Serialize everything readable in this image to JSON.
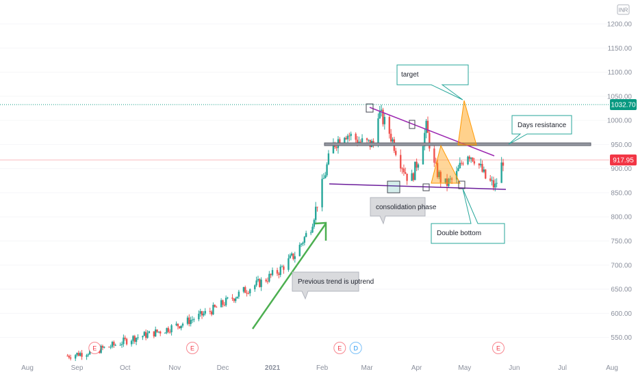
{
  "chart_data": {
    "type": "candlestick",
    "currency": "INR",
    "y_axis": {
      "min": 510,
      "max": 1230,
      "ticks": [
        550,
        600,
        650,
        700,
        750,
        800,
        850,
        900,
        950,
        1000,
        1050,
        1100,
        1150,
        1200
      ],
      "tick_labels": [
        "550.00",
        "600.00",
        "650.00",
        "700.00",
        "750.00",
        "800.00",
        "850.00",
        "900.00",
        "950.00",
        "1000.00",
        "1050.00",
        "1100.00",
        "1150.00",
        "1200.00"
      ]
    },
    "x_axis": {
      "labels": [
        "Aug",
        "Sep",
        "Oct",
        "Nov",
        "Dec",
        "2021",
        "Feb",
        "Mar",
        "Apr",
        "May",
        "Jun",
        "Jul",
        "Aug"
      ],
      "bold_labels": [
        "2021"
      ]
    },
    "price_levels": [
      {
        "value": 1032.7,
        "label": "1032.70",
        "color": "#089981",
        "style": "dotted"
      },
      {
        "value": 917.95,
        "label": "917.95",
        "color": "#f23645",
        "style": "solid"
      }
    ],
    "trend": [
      [
        "2020-08-26",
        512
      ],
      [
        "2020-09-05",
        518
      ],
      [
        "2020-09-15",
        525
      ],
      [
        "2020-09-25",
        535
      ],
      [
        "2020-10-05",
        548
      ],
      [
        "2020-10-15",
        556
      ],
      [
        "2020-10-25",
        565
      ],
      [
        "2020-11-05",
        578
      ],
      [
        "2020-11-15",
        592
      ],
      [
        "2020-11-25",
        608
      ],
      [
        "2020-12-05",
        628
      ],
      [
        "2020-12-15",
        648
      ],
      [
        "2020-12-25",
        665
      ],
      [
        "2021-01-05",
        688
      ],
      [
        "2021-01-15",
        722
      ],
      [
        "2021-01-25",
        780
      ],
      [
        "2021-02-01",
        865
      ],
      [
        "2021-02-07",
        945
      ],
      [
        "2021-02-15",
        975
      ],
      [
        "2021-02-25",
        955
      ],
      [
        "2021-03-05",
        950
      ],
      [
        "2021-03-08",
        1020
      ],
      [
        "2021-03-15",
        975
      ],
      [
        "2021-03-22",
        915
      ],
      [
        "2021-03-28",
        870
      ],
      [
        "2021-04-02",
        920
      ],
      [
        "2021-04-07",
        985
      ],
      [
        "2021-04-12",
        905
      ],
      [
        "2021-04-18",
        865
      ],
      [
        "2021-04-25",
        880
      ],
      [
        "2021-05-02",
        935
      ],
      [
        "2021-05-08",
        920
      ],
      [
        "2021-05-14",
        880
      ],
      [
        "2021-05-20",
        862
      ],
      [
        "2021-05-25",
        918
      ]
    ],
    "annotations": [
      {
        "kind": "callout",
        "text": "target",
        "date": "2021-04-10",
        "value": 1086
      },
      {
        "kind": "callout",
        "text": "Days resistance",
        "date": "2021-06-15",
        "value": 985
      },
      {
        "kind": "callout",
        "text": "consolidation phase",
        "date": "2021-03-25",
        "value": 830
      },
      {
        "kind": "callout",
        "text": "Double bottom",
        "date": "2021-05-28",
        "value": 763
      },
      {
        "kind": "callout",
        "text": "Previous  trend is uptrend",
        "date": "2021-01-30",
        "value": 642
      }
    ],
    "events": [
      {
        "label": "E",
        "date": "2020-09-12",
        "type": "earnings"
      },
      {
        "label": "E",
        "date": "2020-11-12",
        "type": "earnings"
      },
      {
        "label": "E",
        "date": "2021-02-12",
        "type": "earnings"
      },
      {
        "label": "D",
        "date": "2021-02-22",
        "type": "dividend"
      },
      {
        "label": "E",
        "date": "2021-05-22",
        "type": "earnings"
      }
    ],
    "colors": {
      "up": "#26a69a",
      "down": "#ef5350",
      "resistance": "#9c27b0",
      "target": "#ff9800",
      "arrow": "#4caf50",
      "callout_border": "#26a69a"
    }
  }
}
